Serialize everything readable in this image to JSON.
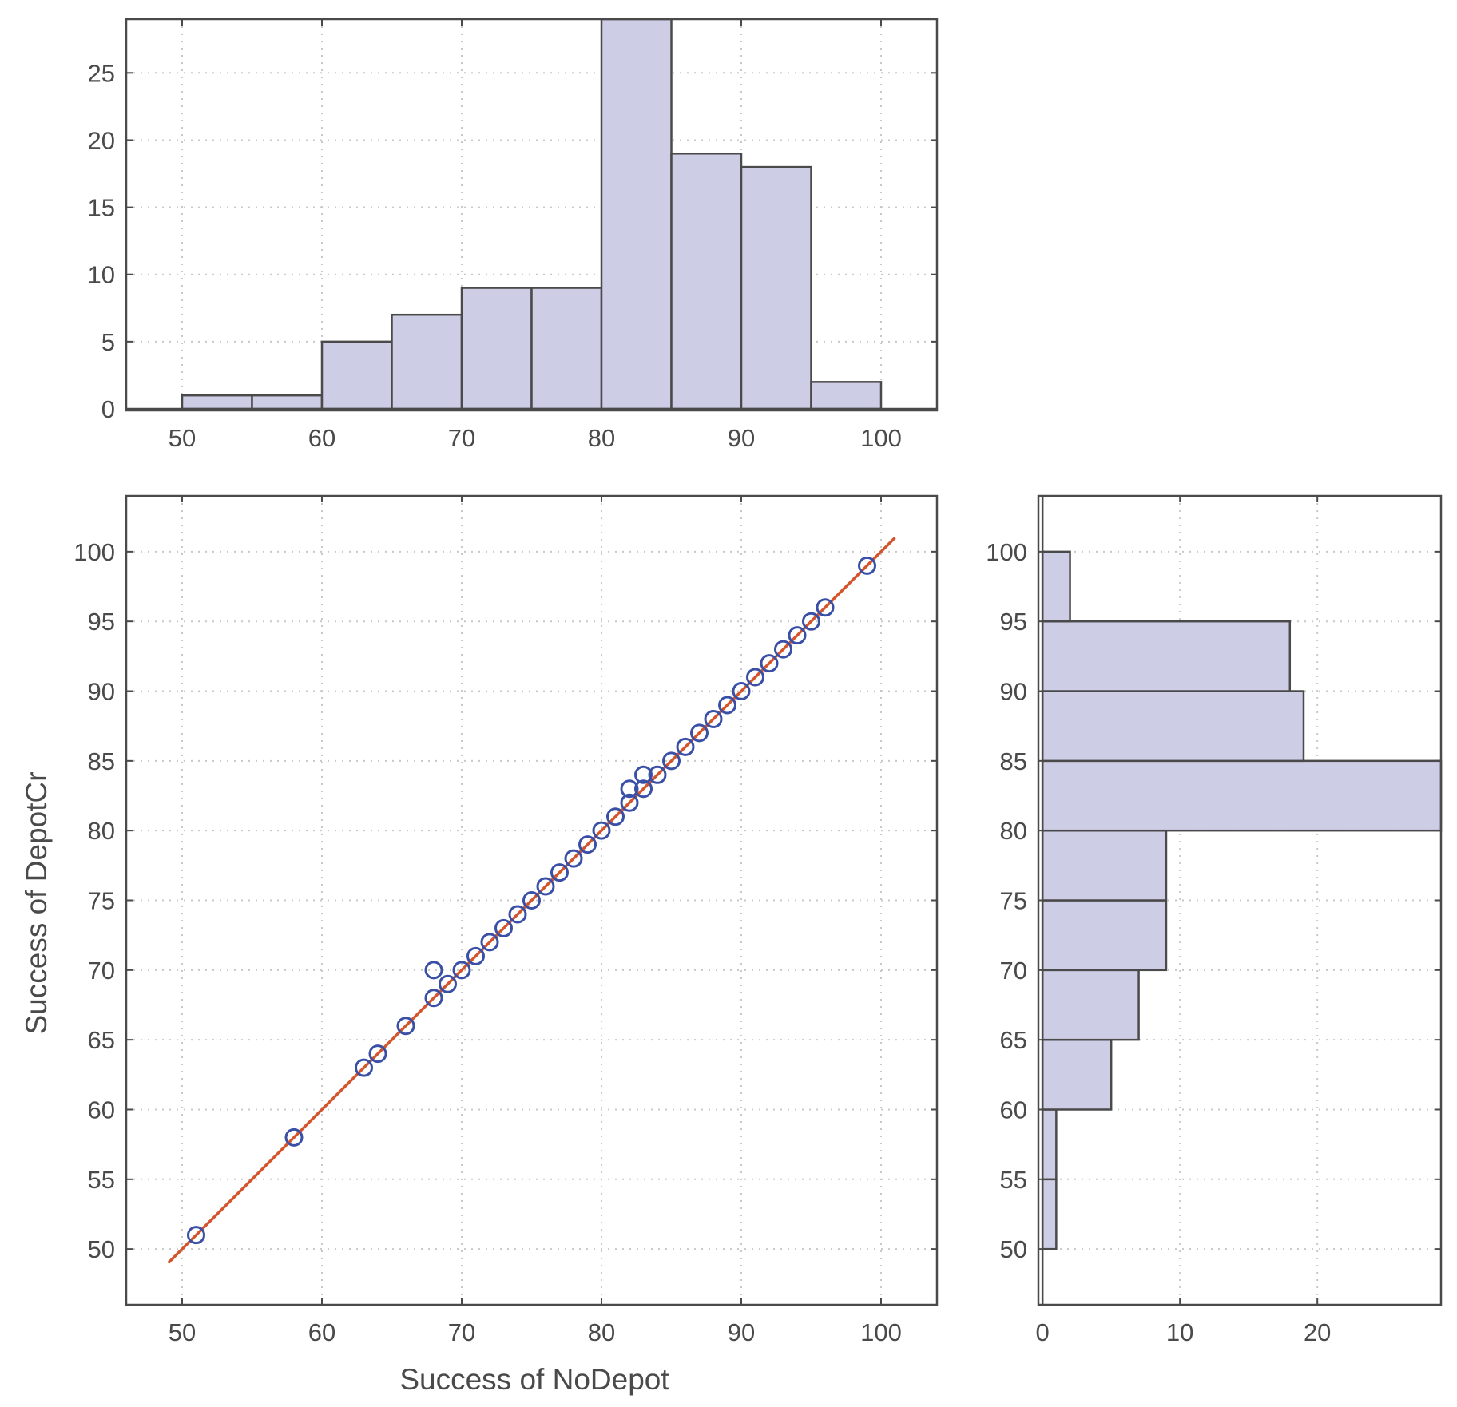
{
  "chart_data": [
    {
      "id": "top-histogram",
      "type": "bar",
      "orientation": "vertical",
      "bin_edges": [
        50,
        55,
        60,
        65,
        70,
        75,
        80,
        85,
        90,
        95,
        100
      ],
      "counts": [
        1,
        1,
        5,
        7,
        9,
        9,
        29,
        19,
        18,
        2
      ],
      "xlim": [
        46,
        104
      ],
      "ylim": [
        0,
        29
      ],
      "xticks": [
        "50",
        "60",
        "70",
        "80",
        "90",
        "100"
      ],
      "yticks": [
        "0",
        "5",
        "10",
        "15",
        "20",
        "25"
      ],
      "grid": true,
      "bar_color": "#cecde6",
      "edge_color": "#4a4a4a"
    },
    {
      "id": "scatter",
      "type": "scatter",
      "xlabel": "Success of NoDepot",
      "ylabel": "Success of DepotCr",
      "xlim": [
        46,
        104
      ],
      "ylim": [
        46,
        104
      ],
      "xticks": [
        "50",
        "60",
        "70",
        "80",
        "90",
        "100"
      ],
      "yticks": [
        "50",
        "55",
        "60",
        "65",
        "70",
        "75",
        "80",
        "85",
        "90",
        "95",
        "100"
      ],
      "grid": true,
      "points": [
        {
          "x": 51,
          "y": 51
        },
        {
          "x": 58,
          "y": 58
        },
        {
          "x": 63,
          "y": 63
        },
        {
          "x": 64,
          "y": 64
        },
        {
          "x": 66,
          "y": 66
        },
        {
          "x": 68,
          "y": 68
        },
        {
          "x": 68,
          "y": 70
        },
        {
          "x": 69,
          "y": 69
        },
        {
          "x": 70,
          "y": 70
        },
        {
          "x": 71,
          "y": 71
        },
        {
          "x": 72,
          "y": 72
        },
        {
          "x": 73,
          "y": 73
        },
        {
          "x": 74,
          "y": 74
        },
        {
          "x": 75,
          "y": 75
        },
        {
          "x": 76,
          "y": 76
        },
        {
          "x": 77,
          "y": 77
        },
        {
          "x": 78,
          "y": 78
        },
        {
          "x": 79,
          "y": 79
        },
        {
          "x": 80,
          "y": 80
        },
        {
          "x": 81,
          "y": 81
        },
        {
          "x": 82,
          "y": 82
        },
        {
          "x": 82,
          "y": 83
        },
        {
          "x": 83,
          "y": 83
        },
        {
          "x": 83,
          "y": 84
        },
        {
          "x": 84,
          "y": 84
        },
        {
          "x": 85,
          "y": 85
        },
        {
          "x": 86,
          "y": 86
        },
        {
          "x": 87,
          "y": 87
        },
        {
          "x": 88,
          "y": 88
        },
        {
          "x": 89,
          "y": 89
        },
        {
          "x": 90,
          "y": 90
        },
        {
          "x": 91,
          "y": 91
        },
        {
          "x": 92,
          "y": 92
        },
        {
          "x": 93,
          "y": 93
        },
        {
          "x": 94,
          "y": 94
        },
        {
          "x": 95,
          "y": 95
        },
        {
          "x": 96,
          "y": 96
        },
        {
          "x": 99,
          "y": 99
        }
      ],
      "fit_line": {
        "x": [
          49,
          101
        ],
        "y": [
          49,
          101
        ]
      },
      "marker_color": "#3a4fa6",
      "line_color": "#d4552b"
    },
    {
      "id": "right-histogram",
      "type": "bar",
      "orientation": "horizontal",
      "bin_edges": [
        50,
        55,
        60,
        65,
        70,
        75,
        80,
        85,
        90,
        95,
        100
      ],
      "counts": [
        1,
        1,
        5,
        7,
        9,
        9,
        29,
        19,
        18,
        2
      ],
      "xlim": [
        -0.3,
        29
      ],
      "ylim": [
        46,
        104
      ],
      "xticks": [
        "0",
        "10",
        "20"
      ],
      "yticks": [
        "50",
        "55",
        "60",
        "65",
        "70",
        "75",
        "80",
        "85",
        "90",
        "95",
        "100"
      ],
      "grid": true,
      "bar_color": "#cecde6",
      "edge_color": "#4a4a4a"
    }
  ]
}
